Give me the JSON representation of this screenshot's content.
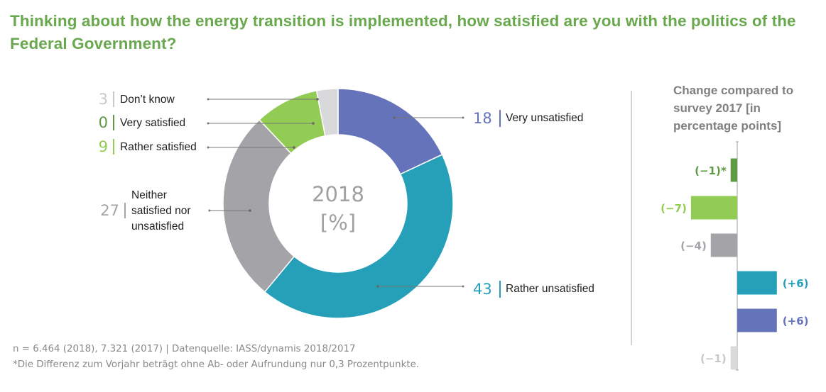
{
  "title": "Thinking about how the energy transition is implemented, how satisfied are you with the politics of the Federal Government?",
  "footer": {
    "line1": "n = 6.464 (2018), 7.321 (2017) | Datenquelle: IASS/dynamis 2018/2017",
    "line2": "*Die Differenz zum Vorjahr beträgt ohne Ab- oder Aufrundung nur 0,3 Prozentpunkte."
  },
  "chart_data": [
    {
      "type": "pie",
      "subtype": "donut",
      "center_label": [
        "2018",
        "[%]"
      ],
      "start": "top",
      "direction": "clockwise",
      "slices": [
        {
          "label": "Very unsatisfied",
          "value": 18,
          "color": "#6573bb"
        },
        {
          "label": "Rather unsatisfied",
          "value": 43,
          "color": "#26a0b8"
        },
        {
          "label": "Neither satisfied nor unsatisfied",
          "value": 27,
          "color": "#a4a4a8"
        },
        {
          "label": "Rather satisfied",
          "value": 9,
          "color": "#92cc55"
        },
        {
          "label": "Very satisfied",
          "value": 0,
          "color": "#5f9a45"
        },
        {
          "label": "Don’t know",
          "value": 3,
          "color": "#d9d9dc"
        }
      ],
      "label_lines": {
        "Neither satisfied nor unsatisfied": [
          "Neither",
          "satisfied nor",
          "unsatisfied"
        ]
      }
    },
    {
      "type": "bar",
      "orientation": "horizontal",
      "title": [
        "Change compared to",
        "survey 2017 [in",
        "percentage points]"
      ],
      "unit": "percentage points",
      "categories": [
        "Very satisfied",
        "Rather satisfied",
        "Neither satisfied nor unsatisfied",
        "Rather unsatisfied",
        "Very unsatisfied",
        "Don’t know"
      ],
      "values": [
        -1,
        -7,
        -4,
        6,
        6,
        -1
      ],
      "data_labels": [
        "(−1)*",
        "(−7)",
        "(−4)",
        "(+6)",
        "(+6)",
        "(−1)"
      ],
      "colors": [
        "#5f9a45",
        "#92cc55",
        "#a4a4a8",
        "#26a0b8",
        "#6573bb",
        "#d9d9dc"
      ],
      "label_colors": [
        "#5f9a45",
        "#92cc55",
        "#a4a4a8",
        "#26a0b8",
        "#6573bb",
        "#c8c8cc"
      ],
      "xlim": [
        -7.5,
        7.5
      ]
    }
  ]
}
